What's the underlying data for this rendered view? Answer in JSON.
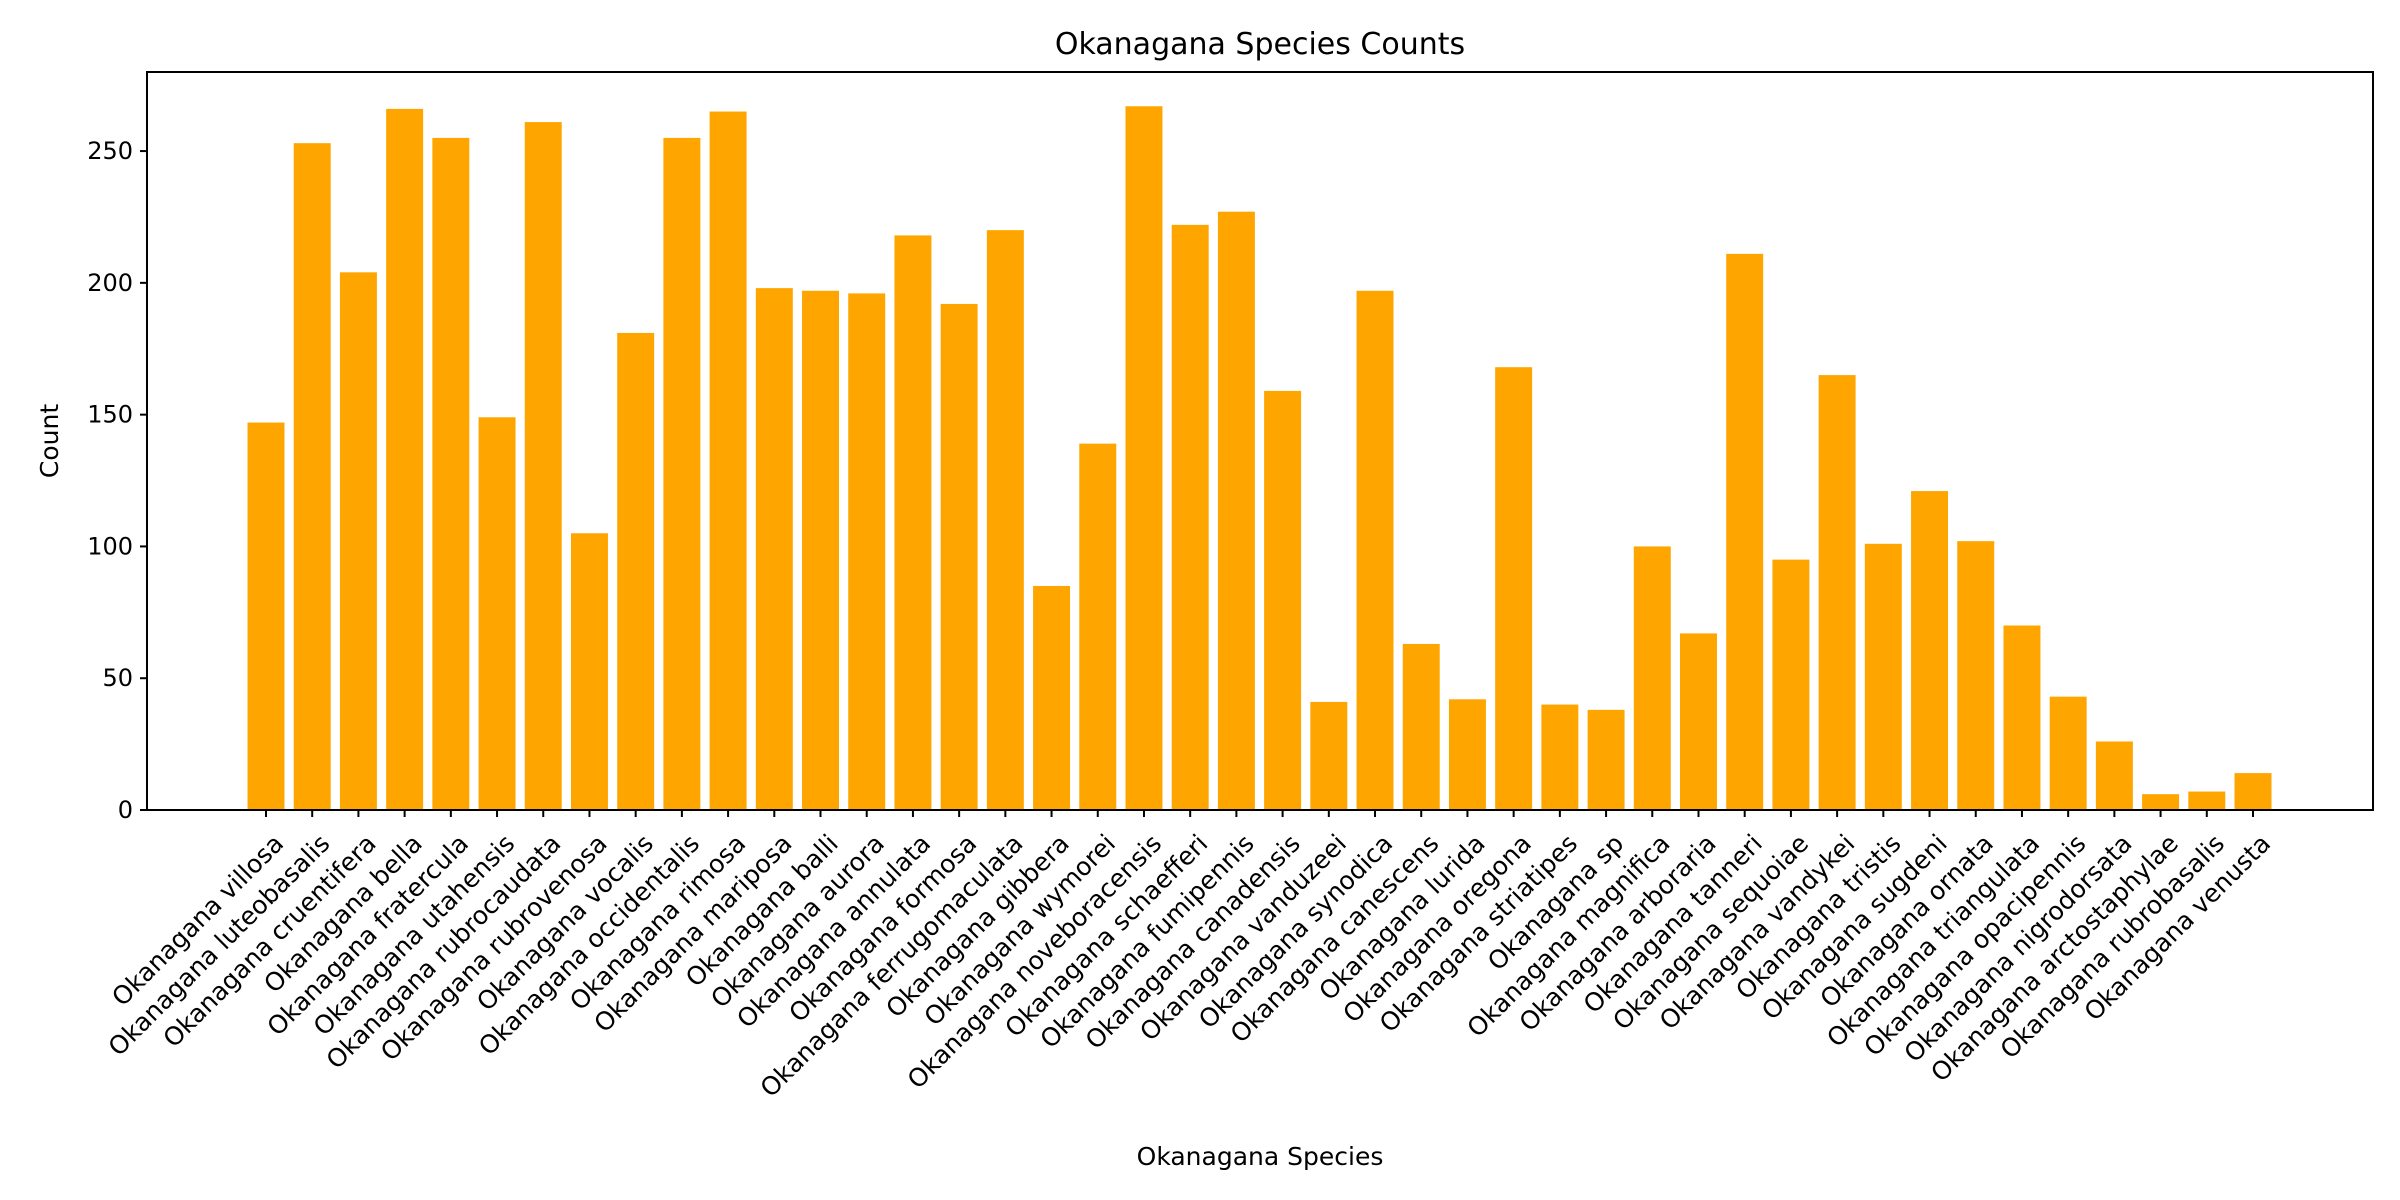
{
  "chart_data": {
    "type": "bar",
    "title": "Okanagana Species Counts",
    "xlabel": "Okanagana Species",
    "ylabel": "Count",
    "ylim": [
      0,
      280
    ],
    "yticks": [
      0,
      50,
      100,
      150,
      200,
      250
    ],
    "bar_color": "#FFA500",
    "grid": false,
    "categories": [
      "Okanagana villosa",
      "Okanagana luteobasalis",
      "Okanagana cruentifera",
      "Okanagana bella",
      "Okanagana fratercula",
      "Okanagana utahensis",
      "Okanagana rubrocaudata",
      "Okanagana rubrovenosa",
      "Okanagana vocalis",
      "Okanagana occidentalis",
      "Okanagana rimosa",
      "Okanagana mariposa",
      "Okanagana balli",
      "Okanagana aurora",
      "Okanagana annulata",
      "Okanagana formosa",
      "Okanagana ferrugomaculata",
      "Okanagana gibbera",
      "Okanagana wymorei",
      "Okanagana noveboracensis",
      "Okanagana schaefferi",
      "Okanagana fumipennis",
      "Okanagana canadensis",
      "Okanagana vanduzeei",
      "Okanagana synodica",
      "Okanagana canescens",
      "Okanagana lurida",
      "Okanagana oregona",
      "Okanagana striatipes",
      "Okanagana sp",
      "Okanagana magnifica",
      "Okanagana arboraria",
      "Okanagana tanneri",
      "Okanagana sequoiae",
      "Okanagana vandykei",
      "Okanagana tristis",
      "Okanagana sugdeni",
      "Okanagana ornata",
      "Okanagana triangulata",
      "Okanagana opacipennis",
      "Okanagana nigrodorsata",
      "Okanagana arctostaphylae",
      "Okanagana rubrobasalis",
      "Okanagana venusta"
    ],
    "values": [
      147,
      253,
      204,
      266,
      255,
      149,
      261,
      105,
      181,
      255,
      265,
      198,
      197,
      196,
      218,
      192,
      220,
      85,
      139,
      267,
      222,
      227,
      159,
      41,
      197,
      63,
      42,
      168,
      40,
      38,
      100,
      67,
      211,
      95,
      165,
      101,
      121,
      102,
      70,
      43,
      26,
      6,
      7,
      14
    ]
  }
}
